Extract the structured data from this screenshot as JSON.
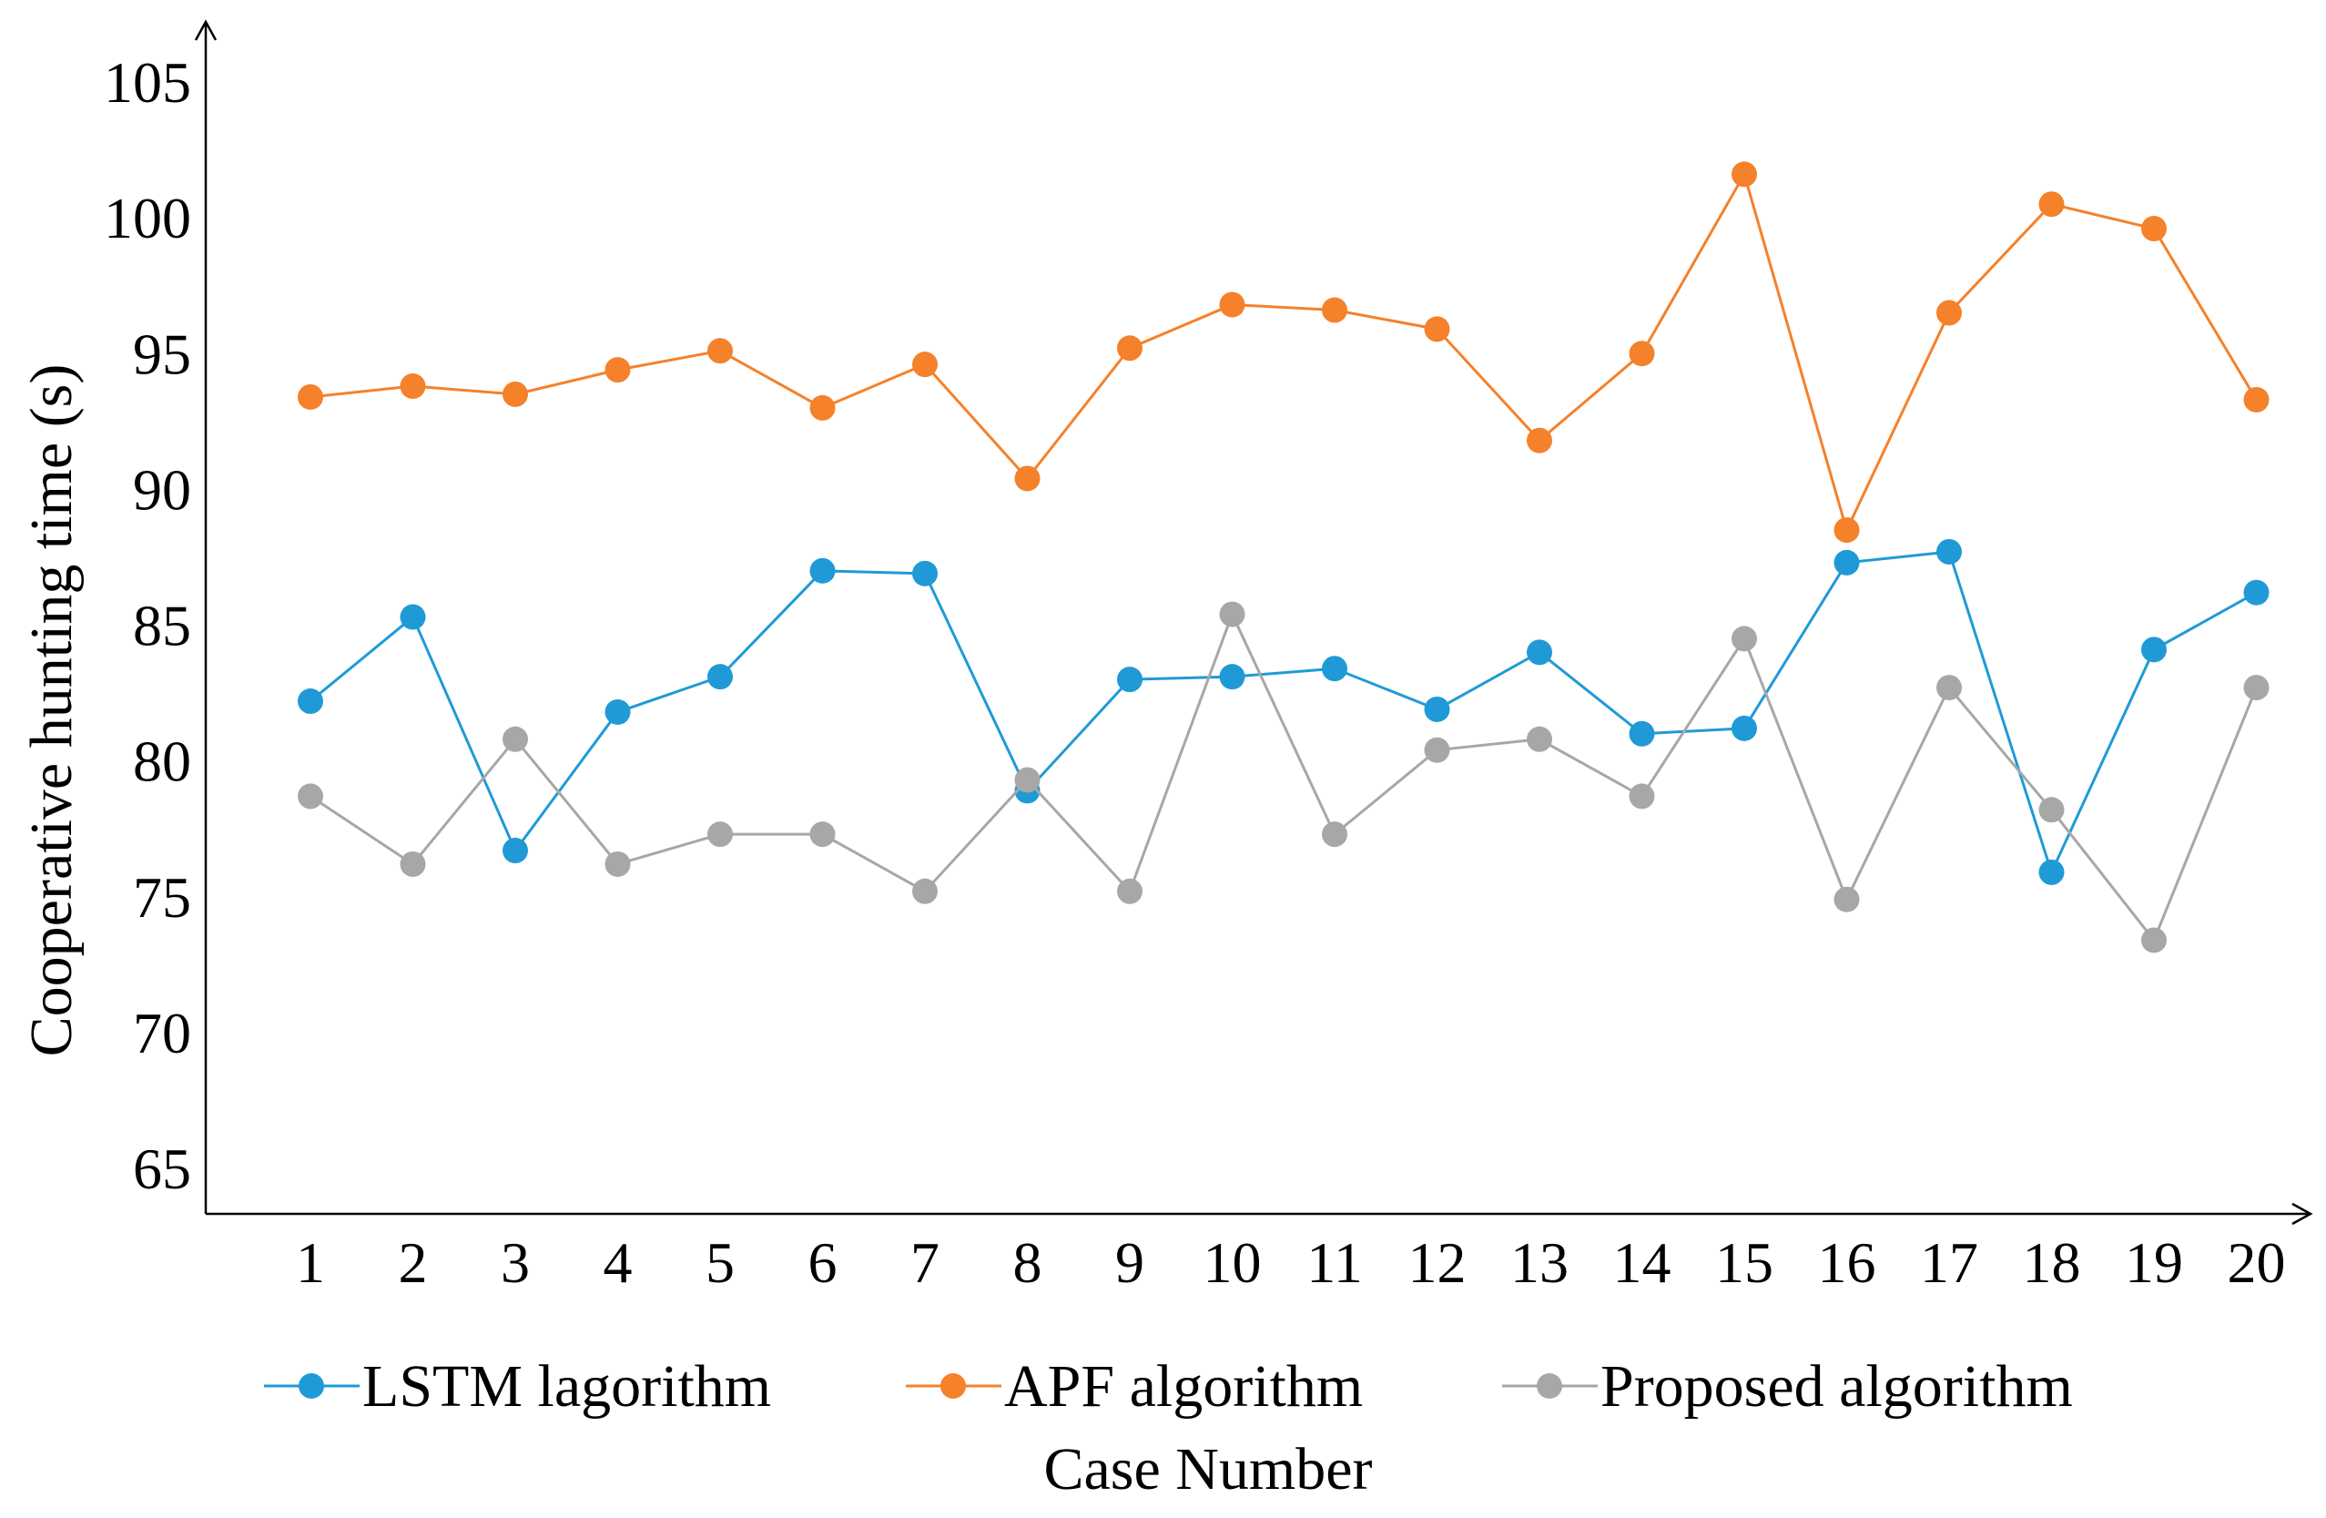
{
  "chart_data": {
    "type": "line",
    "categories": [
      "1",
      "2",
      "3",
      "4",
      "5",
      "6",
      "7",
      "8",
      "9",
      "10",
      "11",
      "12",
      "13",
      "14",
      "15",
      "16",
      "17",
      "18",
      "19",
      "20"
    ],
    "series": [
      {
        "name": "LSTM lagorithm",
        "color": "#1f9ad6",
        "values": [
          82.2,
          85.3,
          76.7,
          81.8,
          83.1,
          87.0,
          86.9,
          78.9,
          83.0,
          83.1,
          83.4,
          81.9,
          84.0,
          81.0,
          81.2,
          87.3,
          87.7,
          75.9,
          84.1,
          86.2
        ]
      },
      {
        "name": "APF algorithm",
        "color": "#f5812a",
        "values": [
          93.4,
          93.8,
          93.5,
          94.4,
          95.1,
          93.0,
          94.6,
          90.4,
          95.2,
          96.8,
          96.6,
          95.9,
          91.8,
          95.0,
          101.6,
          88.5,
          96.5,
          100.5,
          99.6,
          93.3
        ]
      },
      {
        "name": "Proposed algorithm",
        "color": "#a7a7a7",
        "values": [
          78.7,
          76.2,
          80.8,
          76.2,
          77.3,
          77.3,
          75.2,
          79.3,
          75.2,
          85.4,
          77.3,
          80.4,
          80.8,
          78.7,
          84.5,
          74.9,
          82.7,
          78.2,
          73.4,
          82.7
        ]
      }
    ],
    "yticks": [
      "65",
      "70",
      "75",
      "80",
      "85",
      "90",
      "95",
      "100",
      "105"
    ],
    "ylim": [
      65,
      105
    ],
    "ylabel": "Cooperative hunting time (s)",
    "xlabel": "Case Number",
    "legend_position": "bottom",
    "grid": false
  }
}
